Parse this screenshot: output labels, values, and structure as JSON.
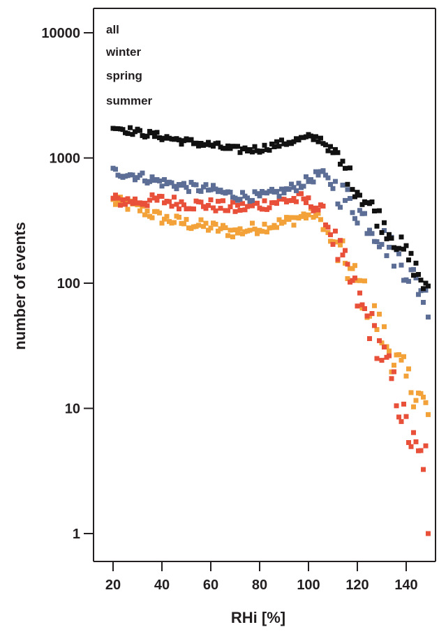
{
  "chart_data": {
    "type": "scatter",
    "xlabel": "RHi [%]",
    "ylabel": "number of events",
    "xlim": [
      15,
      153
    ],
    "ylim": [
      0.55,
      20000
    ],
    "yscale": "log",
    "xticks": [
      20,
      40,
      60,
      80,
      100,
      120,
      140
    ],
    "yticks": [
      1,
      10,
      100,
      1000,
      10000
    ],
    "ytick_labels": [
      "1",
      "10",
      "100",
      "1000",
      "10000"
    ],
    "grid": false,
    "legend": {
      "placement": "top-left",
      "entries": [
        "all",
        "winter",
        "spring",
        "summer"
      ]
    },
    "series_order": [
      "all",
      "winter",
      "spring",
      "summer"
    ],
    "series": [
      {
        "key": "summer",
        "color": "#f2a238",
        "noise": 0.05,
        "anchors": [
          [
            20,
            450
          ],
          [
            30,
            400
          ],
          [
            40,
            330
          ],
          [
            50,
            300
          ],
          [
            60,
            280
          ],
          [
            70,
            255
          ],
          [
            80,
            280
          ],
          [
            90,
            305
          ],
          [
            97,
            340
          ],
          [
            102,
            360
          ],
          [
            106,
            300
          ],
          [
            110,
            200
          ],
          [
            115,
            145
          ],
          [
            120,
            100
          ],
          [
            125,
            65
          ],
          [
            130,
            40
          ],
          [
            135,
            25
          ],
          [
            140,
            17
          ],
          [
            145,
            13
          ],
          [
            149,
            9
          ]
        ]
      },
      {
        "key": "spring",
        "color": "#e8503a",
        "noise": 0.05,
        "anchors": [
          [
            20,
            460
          ],
          [
            30,
            450
          ],
          [
            40,
            460
          ],
          [
            50,
            430
          ],
          [
            60,
            420
          ],
          [
            70,
            395
          ],
          [
            80,
            420
          ],
          [
            90,
            460
          ],
          [
            97,
            470
          ],
          [
            102,
            420
          ],
          [
            106,
            370
          ],
          [
            110,
            220
          ],
          [
            115,
            130
          ],
          [
            120,
            75
          ],
          [
            125,
            48
          ],
          [
            130,
            28
          ],
          [
            135,
            15
          ],
          [
            140,
            7
          ],
          [
            145,
            4
          ],
          [
            148,
            4
          ]
        ]
      },
      {
        "key": "winter",
        "color": "#5c6e95",
        "noise": 0.04,
        "anchors": [
          [
            20,
            780
          ],
          [
            30,
            720
          ],
          [
            40,
            640
          ],
          [
            50,
            590
          ],
          [
            60,
            560
          ],
          [
            70,
            500
          ],
          [
            80,
            490
          ],
          [
            90,
            540
          ],
          [
            100,
            660
          ],
          [
            105,
            760
          ],
          [
            110,
            600
          ],
          [
            115,
            480
          ],
          [
            120,
            380
          ],
          [
            125,
            300
          ],
          [
            130,
            230
          ],
          [
            135,
            175
          ],
          [
            140,
            130
          ],
          [
            145,
            95
          ],
          [
            149,
            70
          ]
        ]
      },
      {
        "key": "all",
        "color": "#111111",
        "noise": 0.03,
        "anchors": [
          [
            20,
            1780
          ],
          [
            30,
            1600
          ],
          [
            40,
            1480
          ],
          [
            50,
            1350
          ],
          [
            60,
            1270
          ],
          [
            70,
            1160
          ],
          [
            80,
            1180
          ],
          [
            90,
            1320
          ],
          [
            100,
            1450
          ],
          [
            105,
            1420
          ],
          [
            110,
            1100
          ],
          [
            115,
            800
          ],
          [
            120,
            560
          ],
          [
            125,
            420
          ],
          [
            130,
            310
          ],
          [
            135,
            230
          ],
          [
            140,
            170
          ],
          [
            145,
            120
          ],
          [
            149,
            80
          ]
        ]
      }
    ]
  }
}
